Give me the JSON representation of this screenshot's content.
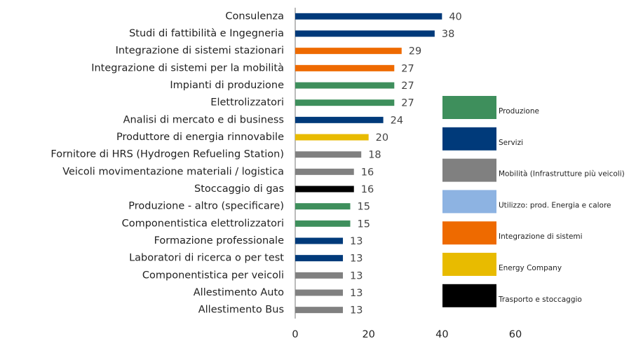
{
  "chart_data": {
    "type": "bar",
    "orientation": "horizontal",
    "categories": [
      "Consulenza",
      "Studi di fattibilità e Ingegneria",
      "Integrazione di sistemi stazionari",
      "Integrazione di sistemi per la mobilità",
      "Impianti di produzione",
      "Elettrolizzatori",
      "Analisi di mercato e di business",
      "Produttore di energia rinnovabile",
      "Fornitore di HRS (Hydrogen Refueling Station)",
      "Veicoli movimentazione materiali / logistica",
      "Stoccaggio di gas",
      "Produzione - altro (specificare)",
      "Componentistica elettrolizzatori",
      "Formazione professionale",
      "Laboratori di ricerca o per test",
      "Componentistica per veicoli",
      "Allestimento Auto",
      "Allestimento Bus"
    ],
    "values": [
      40,
      38,
      29,
      27,
      27,
      27,
      24,
      20,
      18,
      16,
      16,
      15,
      15,
      13,
      13,
      13,
      13,
      13
    ],
    "colors": [
      "#003a7a",
      "#003a7a",
      "#ee6a00",
      "#ee6a00",
      "#3e8f5c",
      "#3e8f5c",
      "#003a7a",
      "#e8bb00",
      "#808080",
      "#808080",
      "#000000",
      "#3e8f5c",
      "#3e8f5c",
      "#003a7a",
      "#003a7a",
      "#808080",
      "#808080",
      "#808080"
    ],
    "xlim": [
      0,
      60
    ],
    "xticks": [
      0,
      20,
      40,
      60
    ],
    "legend": [
      {
        "name": "Produzione",
        "color": "#3e8f5c"
      },
      {
        "name": "Servizi",
        "color": "#003a7a"
      },
      {
        "name": "Mobilità (Infrastrutture più veicoli)",
        "color": "#808080"
      },
      {
        "name": "Utilizzo: prod. Energia e calore",
        "color": "#8db3e2"
      },
      {
        "name": "Integrazione di sistemi",
        "color": "#ee6a00"
      },
      {
        "name": "Energy Company",
        "color": "#e8bb00"
      },
      {
        "name": "Trasporto e stoccaggio",
        "color": "#000000"
      }
    ]
  }
}
